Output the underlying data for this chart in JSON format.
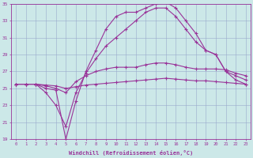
{
  "x": [
    0,
    1,
    2,
    3,
    4,
    5,
    6,
    7,
    8,
    9,
    10,
    11,
    12,
    13,
    14,
    15,
    16,
    17,
    18,
    19,
    20,
    21,
    22,
    23
  ],
  "line1": [
    25.5,
    25.5,
    25.5,
    25.0,
    24.8,
    19.0,
    23.5,
    27.0,
    29.5,
    32.0,
    33.5,
    34.0,
    34.0,
    34.5,
    35.0,
    35.2,
    34.5,
    33.0,
    31.5,
    29.5,
    29.0,
    27.0,
    26.5,
    26.0
  ],
  "line2": [
    25.5,
    25.5,
    25.5,
    24.5,
    23.0,
    20.5,
    24.5,
    26.8,
    28.5,
    30.0,
    31.0,
    32.0,
    33.0,
    34.0,
    34.5,
    34.5,
    33.5,
    32.0,
    30.5,
    29.5,
    29.0,
    27.0,
    26.0,
    25.5
  ],
  "line3": [
    25.5,
    25.5,
    25.5,
    25.3,
    25.0,
    24.5,
    25.8,
    26.5,
    27.0,
    27.3,
    27.5,
    27.5,
    27.5,
    27.8,
    28.0,
    28.0,
    27.8,
    27.5,
    27.3,
    27.3,
    27.3,
    27.2,
    26.8,
    26.5
  ],
  "line4": [
    25.5,
    25.5,
    25.5,
    25.4,
    25.3,
    25.0,
    25.2,
    25.4,
    25.5,
    25.6,
    25.7,
    25.8,
    25.9,
    26.0,
    26.1,
    26.2,
    26.1,
    26.0,
    25.9,
    25.9,
    25.8,
    25.7,
    25.6,
    25.5
  ],
  "color": "#993399",
  "background_color": "#cce8e8",
  "grid_color": "#99aacc",
  "xlabel": "Windchill (Refroidissement éolien,°C)",
  "xlim_min": -0.5,
  "xlim_max": 23.5,
  "ylim_min": 19,
  "ylim_max": 35,
  "yticks": [
    19,
    21,
    23,
    25,
    27,
    29,
    31,
    33,
    35
  ],
  "xticks": [
    0,
    1,
    2,
    3,
    4,
    5,
    6,
    7,
    8,
    9,
    10,
    11,
    12,
    13,
    14,
    15,
    16,
    17,
    18,
    19,
    20,
    21,
    22,
    23
  ]
}
